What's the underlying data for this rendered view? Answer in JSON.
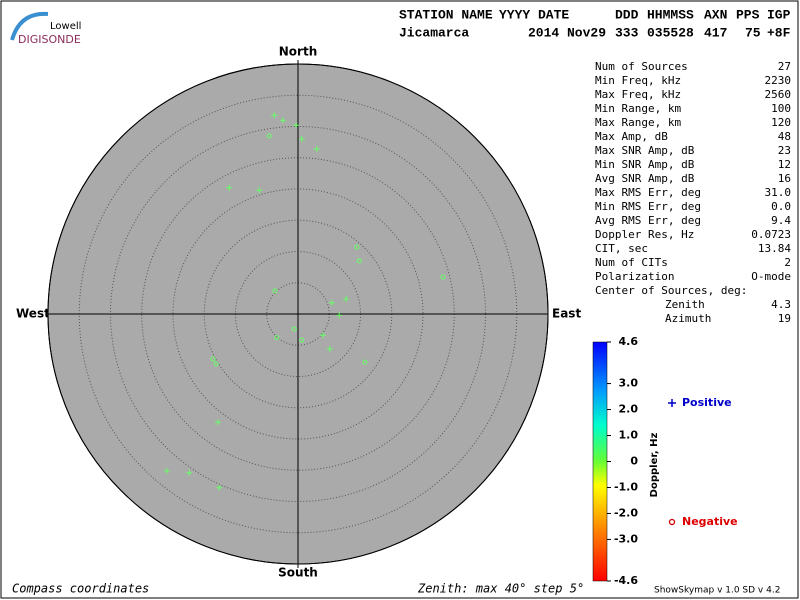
{
  "chart_data": {
    "type": "skymap",
    "logo": {
      "top": "Lowell",
      "bottom": "DIGISONDE"
    },
    "header": {
      "labels": [
        "STATION NAME",
        "YYYY DATE",
        "DDD",
        "HHMMSS",
        "AXN",
        "PPS",
        "IGP"
      ],
      "values": [
        "Jicamarca",
        "2014 Nov29",
        "333",
        "035528",
        "417",
        "75",
        "+8F"
      ]
    },
    "directions": {
      "north": "North",
      "south": "South",
      "east": "East",
      "west": "West"
    },
    "rlim": [
      0,
      40
    ],
    "rticks": [
      5,
      10,
      15,
      20,
      25,
      30,
      35,
      40
    ],
    "series": [
      {
        "name": "Positive",
        "marker": "+",
        "color": "#66ff66",
        "legend_color": "#0000cc",
        "x": [
          -3.8,
          -2.4,
          -0.3,
          0.6,
          3.0,
          -11.0,
          -6.2,
          7.7,
          5.4,
          6.6,
          4.0,
          5.1,
          -12.8,
          -21.0,
          -17.4,
          -12.6
        ],
        "y": [
          31.8,
          31.0,
          30.2,
          28.0,
          26.4,
          20.2,
          19.8,
          2.4,
          1.8,
          -0.2,
          -3.4,
          -5.6,
          -17.3,
          -25.1,
          -25.4,
          -27.8
        ]
      },
      {
        "name": "Negative",
        "marker": "o",
        "color": "#66ff66",
        "legend_color": "#dd0000",
        "x": [
          -4.6,
          9.4,
          9.8,
          23.2,
          -3.7,
          -0.6,
          -3.4,
          0.6,
          10.7,
          -13.6,
          -13.1
        ],
        "y": [
          28.5,
          10.7,
          8.5,
          5.9,
          3.7,
          -2.4,
          -3.8,
          -4.2,
          -7.7,
          -7.2,
          -8.0
        ]
      }
    ],
    "stats": [
      {
        "label": "Num of Sources",
        "value": 27
      },
      {
        "label": "Min Freq, kHz",
        "value": 2230
      },
      {
        "label": "Max Freq, kHz",
        "value": 2560
      },
      {
        "label": "Min Range, km",
        "value": 100
      },
      {
        "label": "Max Range, km",
        "value": 120
      },
      {
        "label": "Max Amp, dB",
        "value": 48
      },
      {
        "label": "Max SNR Amp, dB",
        "value": 23
      },
      {
        "label": "Min SNR Amp, dB",
        "value": 12
      },
      {
        "label": "Avg SNR Amp, dB",
        "value": 16
      },
      {
        "label": "Max RMS Err, deg",
        "value": "31.0"
      },
      {
        "label": "Min RMS Err, deg",
        "value": "0.0"
      },
      {
        "label": "Avg RMS Err, deg",
        "value": 9.4
      },
      {
        "label": "Doppler Res, Hz",
        "value": 0.0723
      },
      {
        "label": "CIT, sec",
        "value": 13.84
      },
      {
        "label": "Num of CITs",
        "value": 2
      },
      {
        "label": "Polarization",
        "value": "O-mode"
      }
    ],
    "center_title": "Center of Sources, deg:",
    "center": [
      {
        "label": "Zenith",
        "value": 4.3
      },
      {
        "label": "Azimuth",
        "value": 19
      }
    ],
    "colorbar": {
      "label": "Doppler, Hz",
      "lim": [
        -4.6,
        4.6
      ],
      "ticks": [
        4.6,
        {
          "value": 3,
          "label": "3.0"
        },
        {
          "value": 2,
          "label": "2.0"
        },
        {
          "value": 1,
          "label": "1.0"
        },
        0,
        {
          "value": -1,
          "label": "-1.0"
        },
        {
          "value": -2,
          "label": "-2.0"
        },
        {
          "value": -3,
          "label": "-3.0"
        },
        -4.6
      ]
    },
    "footer": {
      "left": "Compass coordinates",
      "middle": "Zenith: max 40°  step 5°",
      "right": "ShowSkymap v 1.0  SD v 4.2"
    }
  }
}
